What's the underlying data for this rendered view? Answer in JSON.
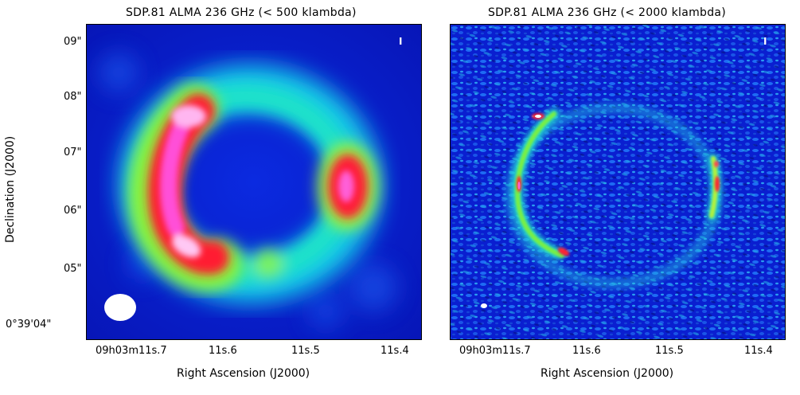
{
  "left_panel": {
    "title": "SDP.81 ALMA 236 GHz (< 500 klambda)",
    "stokes": "I",
    "y_ticks": [
      "09\"",
      "08\"",
      "07\"",
      "06\"",
      "05\"",
      "0°39'04\""
    ],
    "x_ticks": [
      "09h03m11s.7",
      "11s.6",
      "11s.5",
      "11s.4"
    ],
    "xlabel": "Right Ascension (J2000)",
    "ylabel": "Declination (J2000)"
  },
  "right_panel": {
    "title": "SDP.81 ALMA 236 GHz (< 2000 klambda)",
    "stokes": "I",
    "x_ticks": [
      "09h03m11s.7",
      "11s.6",
      "11s.5",
      "11s.4"
    ],
    "xlabel": "Right Ascension (J2000)"
  },
  "colors": {
    "background": "#0a1fd6",
    "ring_low": "#16e0d8",
    "ring_mid": "#3cff40",
    "ring_high": "#ff1a30",
    "peak": "#ffffff"
  }
}
